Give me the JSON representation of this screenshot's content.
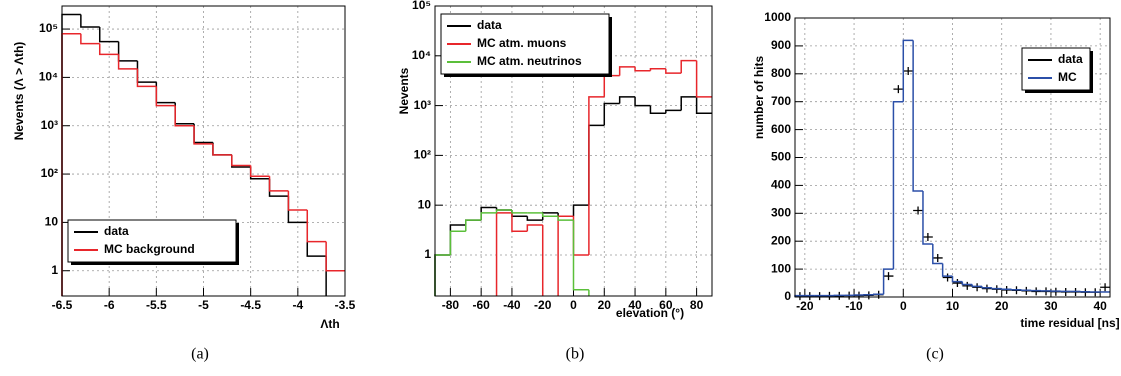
{
  "chart_data": [
    {
      "type": "histogram",
      "caption": "(a)",
      "x_label": "Λth",
      "y_label": "Nevents (Λ > Λth)",
      "yscale": "log",
      "grid": true,
      "legend": "lower left",
      "xlim": [
        -6.5,
        -3.5
      ],
      "xticks": [
        -6.5,
        -6,
        -5.5,
        -5,
        -4.5,
        -4,
        -3.5
      ],
      "ylim": [
        0.3,
        300000
      ],
      "yticks": [
        1,
        10,
        {
          "value": 100,
          "label": "10²"
        },
        {
          "value": 1000,
          "label": "10³"
        },
        {
          "value": 10000,
          "label": "10⁴"
        },
        {
          "value": 100000,
          "label": "10⁵"
        }
      ],
      "bins": [
        -6.5,
        -6.3,
        -6.1,
        -5.9,
        -5.7,
        -5.5,
        -5.3,
        -5.1,
        -4.9,
        -4.7,
        -4.5,
        -4.3,
        -4.1,
        -3.9,
        -3.7,
        -3.5
      ],
      "series": [
        {
          "name": "data",
          "color": "#000000",
          "style": "step",
          "values": [
            200000,
            110000,
            55000,
            22000,
            8000,
            3000,
            1100,
            450,
            250,
            140,
            80,
            35,
            10,
            2,
            null
          ]
        },
        {
          "name": "MC background",
          "color": "#e8262b",
          "style": "step",
          "values": [
            80000,
            50000,
            30000,
            15000,
            6500,
            2600,
            1000,
            420,
            250,
            150,
            90,
            45,
            18,
            4,
            1
          ]
        }
      ]
    },
    {
      "type": "histogram",
      "caption": "(b)",
      "x_label": "elevation (°)",
      "y_label": "Nevents",
      "yscale": "log",
      "grid": true,
      "legend": "upper left",
      "xlim": [
        -90,
        90
      ],
      "xticks": [
        -80,
        -60,
        -40,
        -20,
        0,
        20,
        40,
        60,
        80
      ],
      "ylim": [
        0.15,
        100000
      ],
      "yticks": [
        1,
        10,
        {
          "value": 100,
          "label": "10²"
        },
        {
          "value": 1000,
          "label": "10³"
        },
        {
          "value": 10000,
          "label": "10⁴"
        },
        {
          "value": 100000,
          "label": "10⁵"
        }
      ],
      "bins": [
        -90,
        -80,
        -70,
        -60,
        -50,
        -40,
        -30,
        -20,
        -10,
        0,
        10,
        20,
        30,
        40,
        50,
        60,
        70,
        80,
        90
      ],
      "series": [
        {
          "name": "data",
          "color": "#000000",
          "style": "step",
          "values": [
            1,
            4,
            5,
            9,
            8,
            6,
            5,
            7,
            6,
            10,
            400,
            1100,
            1500,
            1000,
            700,
            800,
            1500,
            700
          ]
        },
        {
          "name": "MC atm. muons",
          "color": "#e8262b",
          "style": "step",
          "values": [
            null,
            null,
            null,
            null,
            7,
            3,
            4,
            null,
            6,
            1,
            1500,
            4000,
            6000,
            5000,
            5500,
            4500,
            8000,
            1500
          ]
        },
        {
          "name": "MC atm. neutrinos",
          "color": "#5bbf3a",
          "style": "step",
          "values": [
            1,
            3,
            5,
            7,
            8,
            7,
            7,
            6,
            5,
            0.2,
            null,
            null,
            null,
            null,
            null,
            null,
            null,
            null
          ]
        }
      ]
    },
    {
      "type": "histogram",
      "caption": "(c)",
      "x_label": "time residual [ns]",
      "y_label": "number of hits",
      "yscale": "linear",
      "grid": true,
      "legend": "upper right",
      "xlim": [
        -22,
        42
      ],
      "xticks": [
        -20,
        -10,
        0,
        10,
        20,
        30,
        40
      ],
      "ylim": [
        0,
        1000
      ],
      "yticks": [
        0,
        100,
        200,
        300,
        400,
        500,
        600,
        700,
        800,
        900,
        1000
      ],
      "bins": [
        -22,
        -20,
        -18,
        -16,
        -14,
        -12,
        -10,
        -8,
        -6,
        -4,
        -2,
        0,
        2,
        4,
        6,
        8,
        10,
        12,
        14,
        16,
        18,
        20,
        22,
        24,
        26,
        28,
        30,
        32,
        34,
        36,
        38,
        40,
        42
      ],
      "series": [
        {
          "name": "data",
          "color": "#000000",
          "style": "points",
          "x": [
            -21,
            -19,
            -17,
            -15,
            -13,
            -11,
            -9,
            -7,
            -5,
            -3,
            -1,
            1,
            3,
            5,
            7,
            9,
            11,
            13,
            15,
            17,
            19,
            21,
            23,
            25,
            27,
            29,
            31,
            33,
            35,
            37,
            39,
            41
          ],
          "values": [
            3,
            3,
            3,
            4,
            4,
            5,
            5,
            6,
            8,
            75,
            745,
            810,
            310,
            215,
            140,
            70,
            50,
            40,
            35,
            30,
            28,
            25,
            24,
            22,
            20,
            20,
            19,
            18,
            18,
            17,
            17,
            35
          ]
        },
        {
          "name": "MC",
          "color": "#2b4fa8",
          "style": "step",
          "values": [
            5,
            5,
            5,
            5,
            6,
            6,
            7,
            8,
            10,
            100,
            700,
            920,
            380,
            190,
            120,
            75,
            55,
            45,
            38,
            33,
            30,
            28,
            26,
            24,
            23,
            22,
            21,
            20,
            20,
            19,
            18,
            18
          ]
        }
      ]
    }
  ]
}
